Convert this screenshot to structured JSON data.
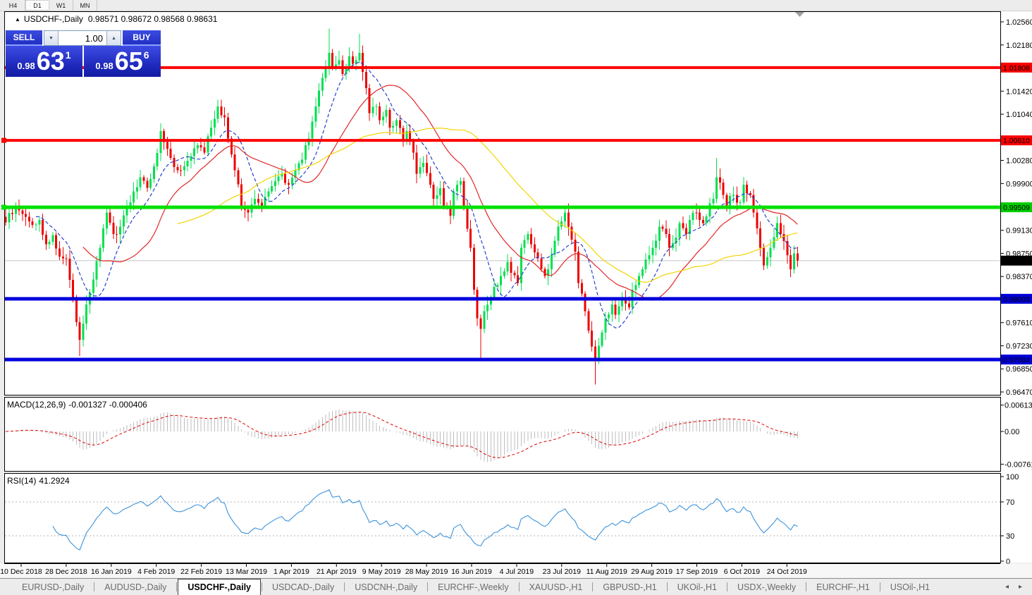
{
  "toolbar": {
    "timeframes": [
      {
        "label": "H4",
        "active": false
      },
      {
        "label": "D1",
        "active": true
      },
      {
        "label": "W1",
        "active": false
      },
      {
        "label": "MN",
        "active": false
      }
    ]
  },
  "icons": {
    "collapse_marker": "▲",
    "scroll_to_end_marker": "▼",
    "spinner_down": "▼",
    "spinner_up": "▲",
    "tab_scroll_left": "◂",
    "tab_scroll_right": "▸"
  },
  "chart_header": {
    "symbol": "USDCHF-,Daily",
    "ohlc": "0.98571 0.98672 0.98568 0.98631"
  },
  "trade_panel": {
    "sell_label": "SELL",
    "buy_label": "BUY",
    "volume": "1.00",
    "sell_price": {
      "prefix": "0.98",
      "big": "63",
      "sup": "1"
    },
    "buy_price": {
      "prefix": "0.98",
      "big": "65",
      "sup": "6"
    }
  },
  "price_axis": {
    "ticks": [
      "1.02560",
      "1.02180",
      "1.01420",
      "1.01040",
      "1.00280",
      "0.99900",
      "0.99130",
      "0.98750",
      "0.98370",
      "0.97610",
      "0.97230",
      "0.96850",
      "0.96470"
    ],
    "highlights": [
      {
        "label": "1.01808",
        "bg": "#fb0000",
        "fg": "#ffffff"
      },
      {
        "label": "1.00610",
        "bg": "#fb0000",
        "fg": "#ffffff"
      },
      {
        "label": "0.99509",
        "bg": "#00cc00",
        "fg": "#ffffff"
      },
      {
        "label": "0.98631",
        "bg": "#000000",
        "fg": "#ffffff"
      },
      {
        "label": "0.98003",
        "bg": "#0000d8",
        "fg": "#ffffff"
      },
      {
        "label": "0.97004",
        "bg": "#0000d8",
        "fg": "#ffffff"
      }
    ]
  },
  "macd_panel": {
    "name": "MACD(12,26,9)",
    "values": "-0.001327 -0.000406",
    "axis": [
      "0.00613",
      "0.00",
      "-0.007612"
    ]
  },
  "rsi_panel": {
    "name": "RSI(14)",
    "value": "41.2924",
    "axis": [
      "100",
      "70",
      "30",
      "0"
    ]
  },
  "date_axis": [
    "10 Dec 2018",
    "28 Dec 2018",
    "16 Jan 2019",
    "4 Feb 2019",
    "22 Feb 2019",
    "13 Mar 2019",
    "1 Apr 2019",
    "21 Apr 2019",
    "9 May 2019",
    "28 May 2019",
    "16 Jun 2019",
    "4 Jul 2019",
    "23 Jul 2019",
    "11 Aug 2019",
    "29 Aug 2019",
    "17 Sep 2019",
    "6 Oct 2019",
    "24 Oct 2019"
  ],
  "tabs": {
    "items": [
      {
        "label": "EURUSD-,Daily",
        "active": false
      },
      {
        "label": "AUDUSD-,Daily",
        "active": false
      },
      {
        "label": "USDCHF-,Daily",
        "active": true
      },
      {
        "label": "USDCAD-,Daily",
        "active": false
      },
      {
        "label": "USDCNH-,Daily",
        "active": false
      },
      {
        "label": "EURCHF-,Weekly",
        "active": false
      },
      {
        "label": "XAUUSD-,H1",
        "active": false
      },
      {
        "label": "GBPUSD-,H1",
        "active": false
      },
      {
        "label": "UKOil-,H1",
        "active": false
      },
      {
        "label": "USDX-,Weekly",
        "active": false
      },
      {
        "label": "EURCHF-,H1",
        "active": false
      },
      {
        "label": "USOil-,H1",
        "active": false
      }
    ]
  },
  "chart_data": {
    "type": "candlestick",
    "symbol": "USDCHF-",
    "timeframe": "Daily",
    "num_candles": 236,
    "y_range": [
      0.96445,
      1.0274
    ],
    "y_ticks": [
      1.0256,
      1.0218,
      1.0142,
      1.0104,
      1.0028,
      0.999,
      0.9913,
      0.9875,
      0.9837,
      0.9761,
      0.9723,
      0.9685,
      0.9647
    ],
    "last_close": 0.98631,
    "close_waypoints": [
      [
        0,
        0.9926
      ],
      [
        3,
        0.9952
      ],
      [
        5,
        0.994
      ],
      [
        8,
        0.9922
      ],
      [
        10,
        0.993
      ],
      [
        12,
        0.989
      ],
      [
        14,
        0.9905
      ],
      [
        16,
        0.987
      ],
      [
        18,
        0.9866
      ],
      [
        20,
        0.9802
      ],
      [
        22,
        0.9733
      ],
      [
        24,
        0.9791
      ],
      [
        26,
        0.9832
      ],
      [
        28,
        0.9884
      ],
      [
        30,
        0.9942
      ],
      [
        32,
        0.9907
      ],
      [
        34,
        0.9919
      ],
      [
        36,
        0.9948
      ],
      [
        38,
        0.9977
      ],
      [
        40,
        1.0
      ],
      [
        42,
        0.9983
      ],
      [
        44,
        1.0018
      ],
      [
        46,
        1.0076
      ],
      [
        48,
        1.0047
      ],
      [
        51,
        1.0012
      ],
      [
        53,
        1.0018
      ],
      [
        55,
        1.0035
      ],
      [
        57,
        1.0053
      ],
      [
        59,
        1.0041
      ],
      [
        61,
        1.0082
      ],
      [
        63,
        1.0117
      ],
      [
        65,
        1.0099
      ],
      [
        66,
        1.0064
      ],
      [
        68,
        1.0012
      ],
      [
        70,
        0.9954
      ],
      [
        72,
        0.9942
      ],
      [
        74,
        0.9965
      ],
      [
        76,
        0.9954
      ],
      [
        78,
        0.9977
      ],
      [
        80,
        0.9994
      ],
      [
        82,
        1.0006
      ],
      [
        84,
        0.9988
      ],
      [
        86,
        1.0012
      ],
      [
        88,
        1.0029
      ],
      [
        90,
        1.0064
      ],
      [
        92,
        1.0117
      ],
      [
        94,
        1.0164
      ],
      [
        96,
        1.0205
      ],
      [
        97,
        1.0181
      ],
      [
        99,
        1.0193
      ],
      [
        100,
        1.017
      ],
      [
        102,
        1.0199
      ],
      [
        103,
        1.0187
      ],
      [
        105,
        1.0205
      ],
      [
        107,
        1.0147
      ],
      [
        108,
        1.0106
      ],
      [
        110,
        1.0117
      ],
      [
        111,
        1.0094
      ],
      [
        113,
        1.0111
      ],
      [
        114,
        1.0082
      ],
      [
        116,
        1.0094
      ],
      [
        118,
        1.0059
      ],
      [
        119,
        1.0076
      ],
      [
        121,
        1.0041
      ],
      [
        122,
        1.0006
      ],
      [
        124,
        1.0024
      ],
      [
        126,
        0.9988
      ],
      [
        127,
        0.9965
      ],
      [
        129,
        0.9982
      ],
      [
        130,
        0.9954
      ],
      [
        132,
        0.9937
      ],
      [
        133,
        0.9977
      ],
      [
        135,
        0.9994
      ],
      [
        136,
        0.9954
      ],
      [
        138,
        0.9884
      ],
      [
        139,
        0.9815
      ],
      [
        140,
        0.9768
      ],
      [
        141,
        0.9751
      ],
      [
        142,
        0.978
      ],
      [
        144,
        0.9803
      ],
      [
        145,
        0.982
      ],
      [
        147,
        0.9838
      ],
      [
        149,
        0.9861
      ],
      [
        150,
        0.9843
      ],
      [
        152,
        0.9826
      ],
      [
        153,
        0.9884
      ],
      [
        155,
        0.9907
      ],
      [
        156,
        0.989
      ],
      [
        158,
        0.9867
      ],
      [
        160,
        0.9838
      ],
      [
        161,
        0.9849
      ],
      [
        163,
        0.9896
      ],
      [
        164,
        0.9919
      ],
      [
        166,
        0.9942
      ],
      [
        167,
        0.9919
      ],
      [
        169,
        0.9878
      ],
      [
        170,
        0.9826
      ],
      [
        172,
        0.978
      ],
      [
        174,
        0.9722
      ],
      [
        175,
        0.9699
      ],
      [
        177,
        0.9745
      ],
      [
        178,
        0.9768
      ],
      [
        180,
        0.9791
      ],
      [
        181,
        0.9774
      ],
      [
        183,
        0.9803
      ],
      [
        185,
        0.9786
      ],
      [
        186,
        0.9815
      ],
      [
        188,
        0.9838
      ],
      [
        189,
        0.9849
      ],
      [
        191,
        0.9872
      ],
      [
        193,
        0.9896
      ],
      [
        194,
        0.9919
      ],
      [
        196,
        0.9907
      ],
      [
        197,
        0.9884
      ],
      [
        199,
        0.9901
      ],
      [
        200,
        0.9925
      ],
      [
        202,
        0.9907
      ],
      [
        203,
        0.993
      ],
      [
        205,
        0.9942
      ],
      [
        207,
        0.9925
      ],
      [
        208,
        0.9936
      ],
      [
        210,
        0.9965
      ],
      [
        211,
        1.0
      ],
      [
        213,
        0.9971
      ],
      [
        214,
        0.9954
      ],
      [
        216,
        0.9971
      ],
      [
        218,
        0.9959
      ],
      [
        219,
        0.9988
      ],
      [
        221,
        0.9971
      ],
      [
        222,
        0.9942
      ],
      [
        224,
        0.9884
      ],
      [
        225,
        0.9855
      ],
      [
        227,
        0.9884
      ],
      [
        229,
        0.9925
      ],
      [
        230,
        0.9907
      ],
      [
        232,
        0.9872
      ],
      [
        233,
        0.9849
      ],
      [
        234,
        0.9875
      ],
      [
        235,
        0.98631
      ]
    ],
    "wick_spikes": [
      {
        "i": 22,
        "low": 0.9706
      },
      {
        "i": 96,
        "high": 1.0245
      },
      {
        "i": 105,
        "high": 1.0236
      },
      {
        "i": 141,
        "low": 0.97
      },
      {
        "i": 175,
        "low": 0.9659
      },
      {
        "i": 211,
        "high": 1.0032
      }
    ],
    "candle_colors": {
      "up": "#00e050",
      "down": "#ee0000"
    },
    "moving_averages": [
      {
        "period": 10,
        "color": "#2741cc",
        "style": "dash"
      },
      {
        "period": 24,
        "color": "#e02828",
        "style": "solid"
      },
      {
        "period": 52,
        "color": "#f2d500",
        "style": "solid"
      }
    ],
    "hlines": [
      {
        "price": 1.01808,
        "color": "#fb0000",
        "width": 4,
        "left_marker": false
      },
      {
        "price": 1.0061,
        "color": "#fb0000",
        "width": 4,
        "left_marker": true
      },
      {
        "price": 0.99509,
        "color": "#00e100",
        "width": 5,
        "left_marker": true
      },
      {
        "price": 0.98003,
        "color": "#0202dd",
        "width": 5,
        "left_marker": false
      },
      {
        "price": 0.97004,
        "color": "#0202dd",
        "width": 5,
        "left_marker": false
      }
    ],
    "current_price_line": {
      "price": 0.98631,
      "color": "#c8c8c8"
    },
    "macd": {
      "fast": 12,
      "slow": 26,
      "signal": 9,
      "hist_color": "#bdbdbd",
      "signal_color": "#e00000",
      "y_max": 0.00613,
      "y_min": -0.007612,
      "current": -0.001327,
      "current_signal": -0.000406
    },
    "rsi": {
      "period": 14,
      "color": "#3b93dc",
      "levels": [
        70,
        30
      ],
      "y_max": 100,
      "y_min": 0,
      "current": 41.2924
    }
  }
}
